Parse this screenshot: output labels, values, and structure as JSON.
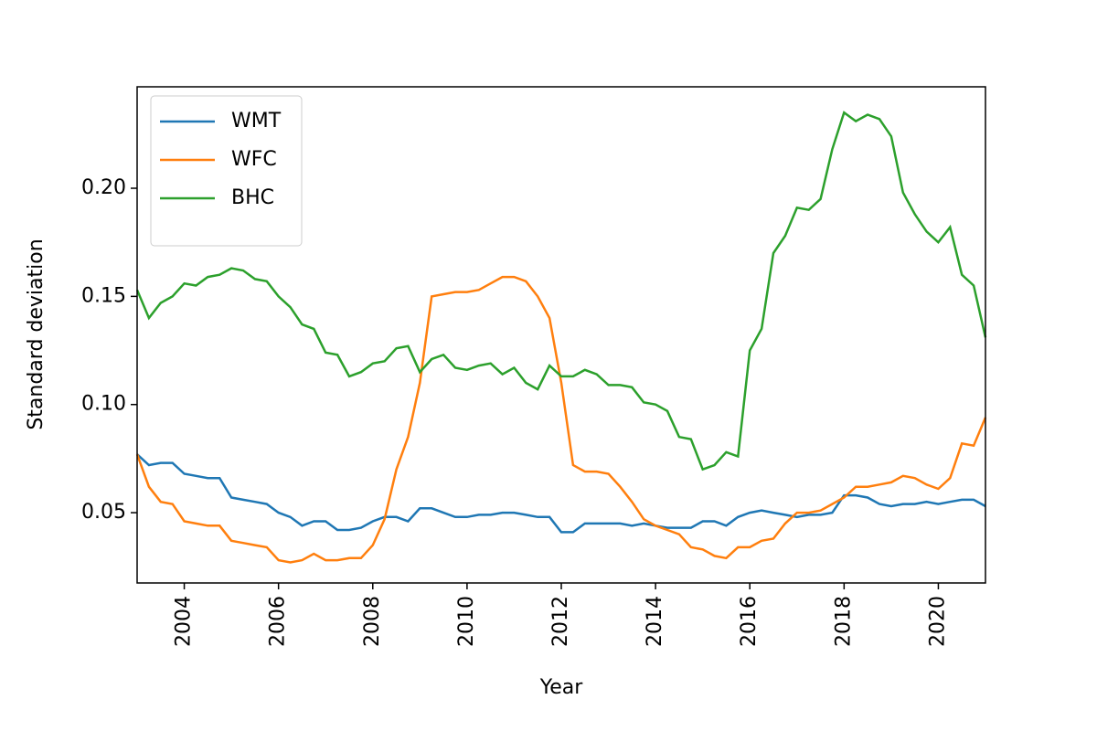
{
  "chart_data": {
    "type": "line",
    "x_label": "Year",
    "y_label": "Standard deviation",
    "x": [
      2003,
      2003.25,
      2003.5,
      2003.75,
      2004,
      2004.25,
      2004.5,
      2004.75,
      2005,
      2005.25,
      2005.5,
      2005.75,
      2006,
      2006.25,
      2006.5,
      2006.75,
      2007,
      2007.25,
      2007.5,
      2007.75,
      2008,
      2008.25,
      2008.5,
      2008.75,
      2009,
      2009.25,
      2009.5,
      2009.75,
      2010,
      2010.25,
      2010.5,
      2010.75,
      2011,
      2011.25,
      2011.5,
      2011.75,
      2012,
      2012.25,
      2012.5,
      2012.75,
      2013,
      2013.25,
      2013.5,
      2013.75,
      2014,
      2014.25,
      2014.5,
      2014.75,
      2015,
      2015.25,
      2015.5,
      2015.75,
      2016,
      2016.25,
      2016.5,
      2016.75,
      2017,
      2017.25,
      2017.5,
      2017.75,
      2018,
      2018.25,
      2018.5,
      2018.75,
      2019,
      2019.25,
      2019.5,
      2019.75,
      2020,
      2020.25,
      2020.5,
      2020.75,
      2021
    ],
    "series": [
      {
        "name": "WMT",
        "color": "#1f77b4",
        "values": [
          0.077,
          0.072,
          0.073,
          0.073,
          0.068,
          0.067,
          0.066,
          0.066,
          0.057,
          0.056,
          0.055,
          0.054,
          0.05,
          0.048,
          0.044,
          0.046,
          0.046,
          0.042,
          0.042,
          0.043,
          0.046,
          0.048,
          0.048,
          0.046,
          0.052,
          0.052,
          0.05,
          0.048,
          0.048,
          0.049,
          0.049,
          0.05,
          0.05,
          0.049,
          0.048,
          0.048,
          0.041,
          0.041,
          0.045,
          0.045,
          0.045,
          0.045,
          0.044,
          0.045,
          0.044,
          0.043,
          0.043,
          0.043,
          0.046,
          0.046,
          0.044,
          0.048,
          0.05,
          0.051,
          0.05,
          0.049,
          0.048,
          0.049,
          0.049,
          0.05,
          0.058,
          0.058,
          0.057,
          0.054,
          0.053,
          0.054,
          0.054,
          0.055,
          0.054,
          0.055,
          0.056,
          0.056,
          0.053
        ]
      },
      {
        "name": "WFC",
        "color": "#ff7f0e",
        "values": [
          0.077,
          0.062,
          0.055,
          0.054,
          0.046,
          0.045,
          0.044,
          0.044,
          0.037,
          0.036,
          0.035,
          0.034,
          0.028,
          0.027,
          0.028,
          0.031,
          0.028,
          0.028,
          0.029,
          0.029,
          0.035,
          0.047,
          0.07,
          0.085,
          0.11,
          0.15,
          0.151,
          0.152,
          0.152,
          0.153,
          0.156,
          0.159,
          0.159,
          0.157,
          0.15,
          0.14,
          0.11,
          0.072,
          0.069,
          0.069,
          0.068,
          0.062,
          0.055,
          0.047,
          0.044,
          0.042,
          0.04,
          0.034,
          0.033,
          0.03,
          0.029,
          0.034,
          0.034,
          0.037,
          0.038,
          0.045,
          0.05,
          0.05,
          0.051,
          0.054,
          0.057,
          0.062,
          0.062,
          0.063,
          0.064,
          0.067,
          0.066,
          0.063,
          0.061,
          0.066,
          0.082,
          0.081,
          0.094
        ]
      },
      {
        "name": "BHC",
        "color": "#2ca02c",
        "values": [
          0.153,
          0.14,
          0.147,
          0.15,
          0.156,
          0.155,
          0.159,
          0.16,
          0.163,
          0.162,
          0.158,
          0.157,
          0.15,
          0.145,
          0.137,
          0.135,
          0.124,
          0.123,
          0.113,
          0.115,
          0.119,
          0.12,
          0.126,
          0.127,
          0.115,
          0.121,
          0.123,
          0.117,
          0.116,
          0.118,
          0.119,
          0.114,
          0.117,
          0.11,
          0.107,
          0.118,
          0.113,
          0.113,
          0.116,
          0.114,
          0.109,
          0.109,
          0.108,
          0.101,
          0.1,
          0.097,
          0.085,
          0.084,
          0.07,
          0.072,
          0.078,
          0.076,
          0.125,
          0.135,
          0.17,
          0.178,
          0.191,
          0.19,
          0.195,
          0.218,
          0.235,
          0.231,
          0.234,
          0.232,
          0.224,
          0.198,
          0.188,
          0.18,
          0.175,
          0.182,
          0.16,
          0.155,
          0.131
        ]
      }
    ],
    "xlim": [
      2003,
      2021
    ],
    "xticks": [
      2004,
      2006,
      2008,
      2010,
      2012,
      2014,
      2016,
      2018,
      2020
    ],
    "ylim": [
      0.0175,
      0.2469
    ],
    "yticks": [
      0.05,
      {
        "value": 0.1,
        "label": "0.10"
      },
      0.15,
      {
        "value": 0.2,
        "label": "0.20"
      }
    ],
    "legend": "upper left"
  }
}
